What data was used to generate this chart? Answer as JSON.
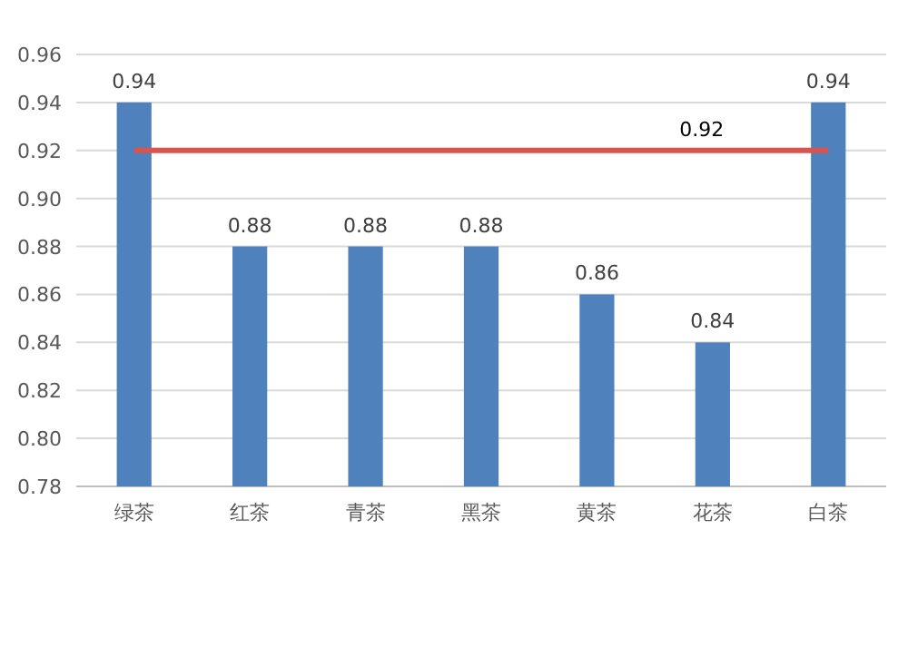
{
  "chart_data": {
    "type": "bar",
    "categories": [
      "绿茶",
      "红茶",
      "青茶",
      "黑茶",
      "黄茶",
      "花茶",
      "白茶"
    ],
    "values": [
      0.94,
      0.88,
      0.88,
      0.88,
      0.86,
      0.84,
      0.94
    ],
    "color": "#4f81bd",
    "data_labels": true,
    "ylim": [
      0.78,
      0.96
    ],
    "yticks": [
      0.78,
      {
        "value": 0.8,
        "label": "0.80"
      },
      0.82,
      0.84,
      0.86,
      0.88,
      {
        "value": 0.9,
        "label": "0.90"
      },
      0.92,
      0.94,
      0.96
    ],
    "grid": "y",
    "ref_lines": [
      {
        "axis": "y",
        "value": 0.92,
        "label": "0.92",
        "color": "#d9534f"
      }
    ]
  }
}
